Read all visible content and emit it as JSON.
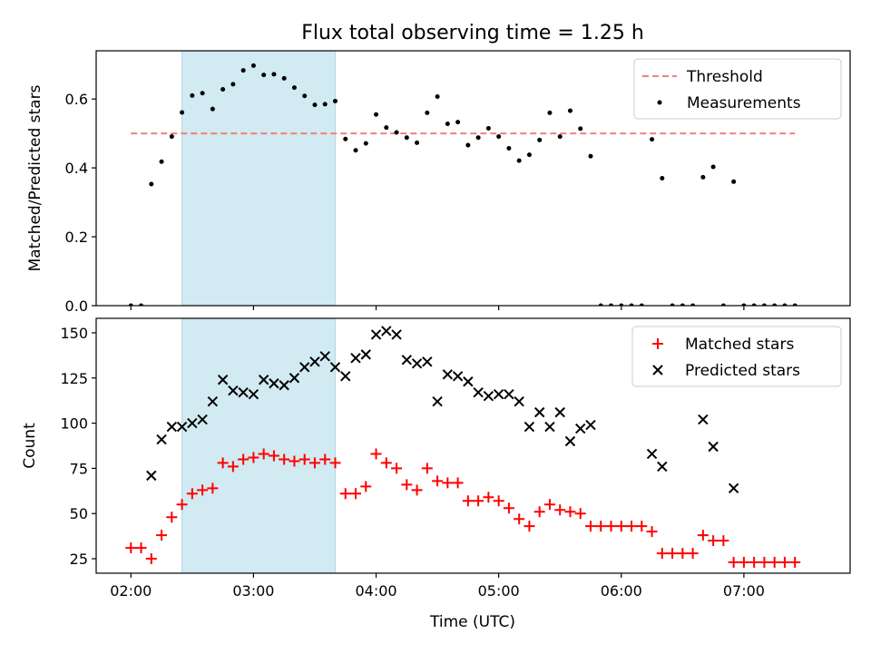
{
  "figure": {
    "title": "Flux total observing time = 1.25 h",
    "xlabel": "Time (UTC)"
  },
  "chart_data": [
    {
      "type": "scatter",
      "panel": "top",
      "ylabel": "Matched/Predicted stars",
      "ylim": [
        0,
        0.74
      ],
      "yticks": [
        "0.0",
        "0.2",
        "0.4",
        "0.6"
      ],
      "highlight_span": {
        "start": "02:25",
        "end": "03:40",
        "color": "#add8e6"
      },
      "threshold": {
        "name": "Threshold",
        "value": 0.5,
        "x_start": "02:00",
        "x_end": "07:25",
        "color": "#f08080"
      },
      "legend": {
        "placement": "upper-right",
        "entries": [
          "Threshold",
          "Measurements"
        ]
      },
      "series": [
        {
          "name": "Measurements",
          "color": "#000000",
          "marker": "dot",
          "points": [
            [
              "02:00",
              0.0
            ],
            [
              "02:05",
              0.0
            ],
            [
              "02:10",
              0.353
            ],
            [
              "02:15",
              0.418
            ],
            [
              "02:20",
              0.491
            ],
            [
              "02:25",
              0.561
            ],
            [
              "02:30",
              0.61
            ],
            [
              "02:35",
              0.617
            ],
            [
              "02:40",
              0.571
            ],
            [
              "02:45",
              0.628
            ],
            [
              "02:50",
              0.643
            ],
            [
              "02:55",
              0.683
            ],
            [
              "03:00",
              0.697
            ],
            [
              "03:05",
              0.67
            ],
            [
              "03:10",
              0.672
            ],
            [
              "03:15",
              0.66
            ],
            [
              "03:20",
              0.633
            ],
            [
              "03:25",
              0.609
            ],
            [
              "03:30",
              0.583
            ],
            [
              "03:35",
              0.585
            ],
            [
              "03:40",
              0.594
            ],
            [
              "03:45",
              0.484
            ],
            [
              "03:50",
              0.451
            ],
            [
              "03:55",
              0.471
            ],
            [
              "04:00",
              0.555
            ],
            [
              "04:05",
              0.517
            ],
            [
              "04:10",
              0.503
            ],
            [
              "04:15",
              0.488
            ],
            [
              "04:20",
              0.473
            ],
            [
              "04:25",
              0.56
            ],
            [
              "04:30",
              0.607
            ],
            [
              "04:35",
              0.528
            ],
            [
              "04:40",
              0.533
            ],
            [
              "04:45",
              0.466
            ],
            [
              "04:50",
              0.488
            ],
            [
              "04:55",
              0.515
            ],
            [
              "05:00",
              0.491
            ],
            [
              "05:05",
              0.457
            ],
            [
              "05:10",
              0.421
            ],
            [
              "05:15",
              0.438
            ],
            [
              "05:20",
              0.481
            ],
            [
              "05:25",
              0.56
            ],
            [
              "05:30",
              0.491
            ],
            [
              "05:35",
              0.566
            ],
            [
              "05:40",
              0.514
            ],
            [
              "05:45",
              0.434
            ],
            [
              "05:50",
              0.0
            ],
            [
              "05:55",
              0.0
            ],
            [
              "06:00",
              0.0
            ],
            [
              "06:05",
              0.0
            ],
            [
              "06:10",
              0.0
            ],
            [
              "06:15",
              0.483
            ],
            [
              "06:20",
              0.37
            ],
            [
              "06:25",
              0.0
            ],
            [
              "06:30",
              0.0
            ],
            [
              "06:35",
              0.0
            ],
            [
              "06:40",
              0.373
            ],
            [
              "06:45",
              0.403
            ],
            [
              "06:50",
              0.0
            ],
            [
              "06:55",
              0.36
            ],
            [
              "07:00",
              0.0
            ],
            [
              "07:05",
              0.0
            ],
            [
              "07:10",
              0.0
            ],
            [
              "07:15",
              0.0
            ],
            [
              "07:20",
              0.0
            ],
            [
              "07:25",
              0.0
            ]
          ]
        }
      ]
    },
    {
      "type": "scatter",
      "panel": "bottom",
      "ylabel": "Count",
      "ylim": [
        17,
        158
      ],
      "yticks": [
        "25",
        "50",
        "75",
        "100",
        "125",
        "150"
      ],
      "xlim": [
        "01:43",
        "07:52"
      ],
      "xticks": [
        "02:00",
        "03:00",
        "04:00",
        "05:00",
        "06:00",
        "07:00"
      ],
      "highlight_span": {
        "start": "02:25",
        "end": "03:40",
        "color": "#add8e6"
      },
      "legend": {
        "placement": "upper-right",
        "entries": [
          "Matched stars",
          "Predicted stars"
        ]
      },
      "series": [
        {
          "name": "Matched stars",
          "color": "#ff0000",
          "marker": "plus",
          "points": [
            [
              "02:00",
              31
            ],
            [
              "02:05",
              31
            ],
            [
              "02:10",
              25
            ],
            [
              "02:15",
              38
            ],
            [
              "02:20",
              48
            ],
            [
              "02:25",
              55
            ],
            [
              "02:30",
              61
            ],
            [
              "02:35",
              63
            ],
            [
              "02:40",
              64
            ],
            [
              "02:45",
              78
            ],
            [
              "02:50",
              76
            ],
            [
              "02:55",
              80
            ],
            [
              "03:00",
              81
            ],
            [
              "03:05",
              83
            ],
            [
              "03:10",
              82
            ],
            [
              "03:15",
              80
            ],
            [
              "03:20",
              79
            ],
            [
              "03:25",
              80
            ],
            [
              "03:30",
              78
            ],
            [
              "03:35",
              80
            ],
            [
              "03:40",
              78
            ],
            [
              "03:45",
              61
            ],
            [
              "03:50",
              61
            ],
            [
              "03:55",
              65
            ],
            [
              "04:00",
              83
            ],
            [
              "04:05",
              78
            ],
            [
              "04:10",
              75
            ],
            [
              "04:15",
              66
            ],
            [
              "04:20",
              63
            ],
            [
              "04:25",
              75
            ],
            [
              "04:30",
              68
            ],
            [
              "04:35",
              67
            ],
            [
              "04:40",
              67
            ],
            [
              "04:45",
              57
            ],
            [
              "04:50",
              57
            ],
            [
              "04:55",
              59
            ],
            [
              "05:00",
              57
            ],
            [
              "05:05",
              53
            ],
            [
              "05:10",
              47
            ],
            [
              "05:15",
              43
            ],
            [
              "05:20",
              51
            ],
            [
              "05:25",
              55
            ],
            [
              "05:30",
              52
            ],
            [
              "05:35",
              51
            ],
            [
              "05:40",
              50
            ],
            [
              "05:45",
              43
            ],
            [
              "05:50",
              43
            ],
            [
              "05:55",
              43
            ],
            [
              "06:00",
              43
            ],
            [
              "06:05",
              43
            ],
            [
              "06:10",
              43
            ],
            [
              "06:15",
              40
            ],
            [
              "06:20",
              28
            ],
            [
              "06:25",
              28
            ],
            [
              "06:30",
              28
            ],
            [
              "06:35",
              28
            ],
            [
              "06:40",
              38
            ],
            [
              "06:45",
              35
            ],
            [
              "06:50",
              35
            ],
            [
              "06:55",
              23
            ],
            [
              "07:00",
              23
            ],
            [
              "07:05",
              23
            ],
            [
              "07:10",
              23
            ],
            [
              "07:15",
              23
            ],
            [
              "07:20",
              23
            ],
            [
              "07:25",
              23
            ]
          ]
        },
        {
          "name": "Predicted stars",
          "color": "#000000",
          "marker": "x",
          "points": [
            [
              "02:10",
              71
            ],
            [
              "02:15",
              91
            ],
            [
              "02:20",
              98
            ],
            [
              "02:25",
              98
            ],
            [
              "02:30",
              100
            ],
            [
              "02:35",
              102
            ],
            [
              "02:40",
              112
            ],
            [
              "02:45",
              124
            ],
            [
              "02:50",
              118
            ],
            [
              "02:55",
              117
            ],
            [
              "03:00",
              116
            ],
            [
              "03:05",
              124
            ],
            [
              "03:10",
              122
            ],
            [
              "03:15",
              121
            ],
            [
              "03:20",
              125
            ],
            [
              "03:25",
              131
            ],
            [
              "03:30",
              134
            ],
            [
              "03:35",
              137
            ],
            [
              "03:40",
              131
            ],
            [
              "03:45",
              126
            ],
            [
              "03:50",
              136
            ],
            [
              "03:55",
              138
            ],
            [
              "04:00",
              149
            ],
            [
              "04:05",
              151
            ],
            [
              "04:10",
              149
            ],
            [
              "04:15",
              135
            ],
            [
              "04:20",
              133
            ],
            [
              "04:25",
              134
            ],
            [
              "04:30",
              112
            ],
            [
              "04:35",
              127
            ],
            [
              "04:40",
              126
            ],
            [
              "04:45",
              123
            ],
            [
              "04:50",
              117
            ],
            [
              "04:55",
              115
            ],
            [
              "05:00",
              116
            ],
            [
              "05:05",
              116
            ],
            [
              "05:10",
              112
            ],
            [
              "05:15",
              98
            ],
            [
              "05:20",
              106
            ],
            [
              "05:25",
              98
            ],
            [
              "05:30",
              106
            ],
            [
              "05:35",
              90
            ],
            [
              "05:40",
              97
            ],
            [
              "05:45",
              99
            ],
            [
              "06:15",
              83
            ],
            [
              "06:20",
              76
            ],
            [
              "06:40",
              102
            ],
            [
              "06:45",
              87
            ],
            [
              "06:55",
              64
            ]
          ]
        }
      ]
    }
  ]
}
